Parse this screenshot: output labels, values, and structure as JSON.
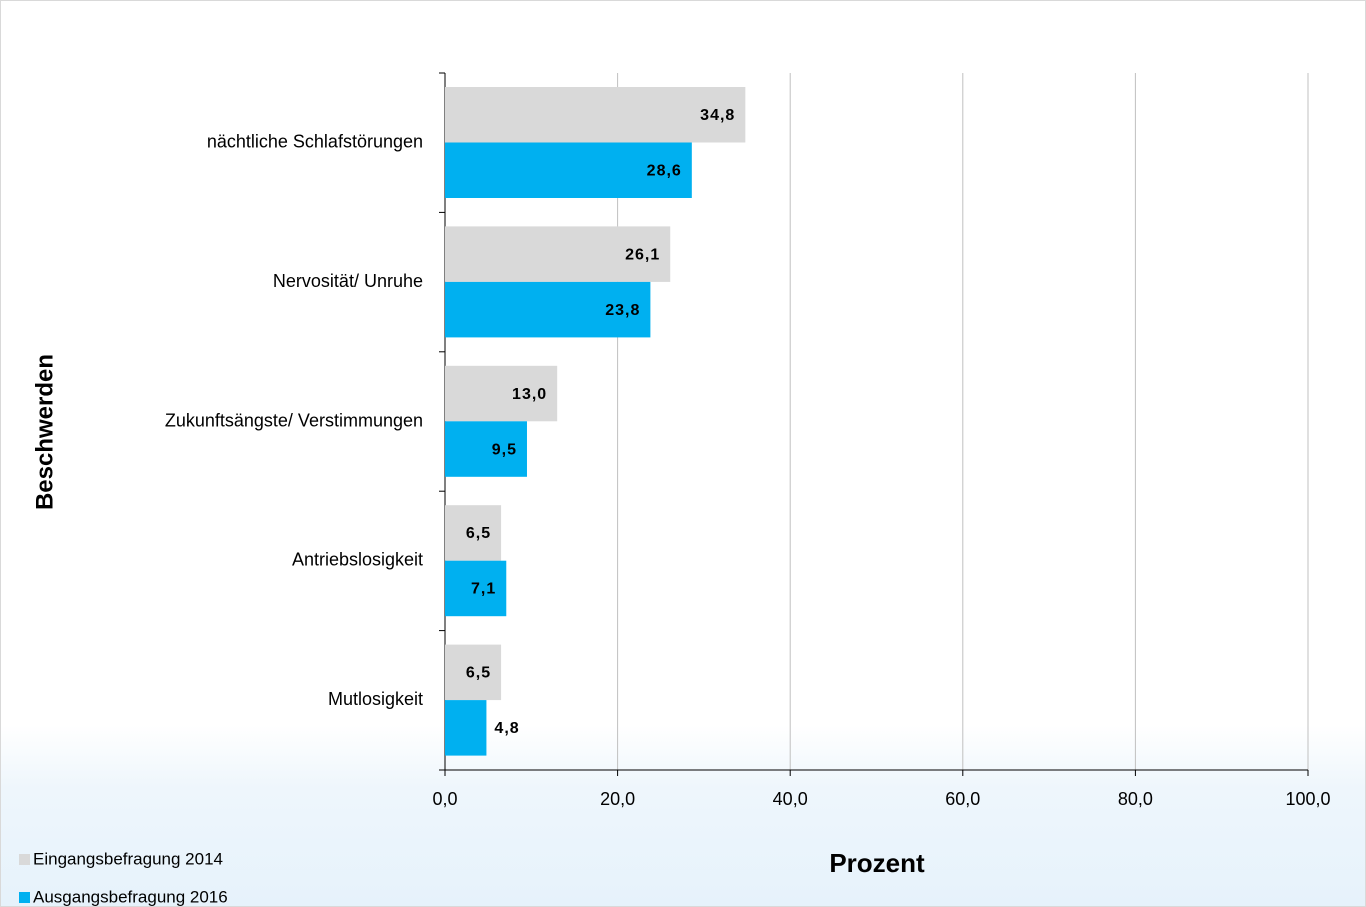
{
  "chart_data": {
    "type": "bar",
    "orientation": "horizontal",
    "xlabel": "Prozent",
    "ylabel": "Beschwerden",
    "categories": [
      "nächtliche Schlafstörungen",
      "Nervosität/ Unruhe",
      "Zukunftsängste/ Verstimmungen",
      "Antriebslosigkeit",
      "Mutlosigkeit"
    ],
    "series": [
      {
        "name": "Eingangsbefragung 2014",
        "color": "#d9d9d9",
        "values": [
          34.8,
          26.1,
          13.0,
          6.5,
          6.5
        ],
        "value_labels": [
          "34,8",
          "26,1",
          "13,0",
          "6,5",
          "6,5"
        ]
      },
      {
        "name": "Ausgangsbefragung 2016",
        "color": "#00b0f0",
        "values": [
          28.6,
          23.8,
          9.5,
          7.1,
          4.8
        ],
        "value_labels": [
          "28,6",
          "23,8",
          "9,5",
          "7,1",
          "4,8"
        ]
      }
    ],
    "xlim": [
      0,
      100
    ],
    "xticks": [
      {
        "value": 0,
        "label": "0,0"
      },
      {
        "value": 20,
        "label": "20,0"
      },
      {
        "value": 40,
        "label": "40,0"
      },
      {
        "value": 60,
        "label": "60,0"
      },
      {
        "value": 80,
        "label": "80,0"
      },
      {
        "value": 100,
        "label": "100,0"
      }
    ],
    "grid": true,
    "legend": "bottom-left"
  }
}
